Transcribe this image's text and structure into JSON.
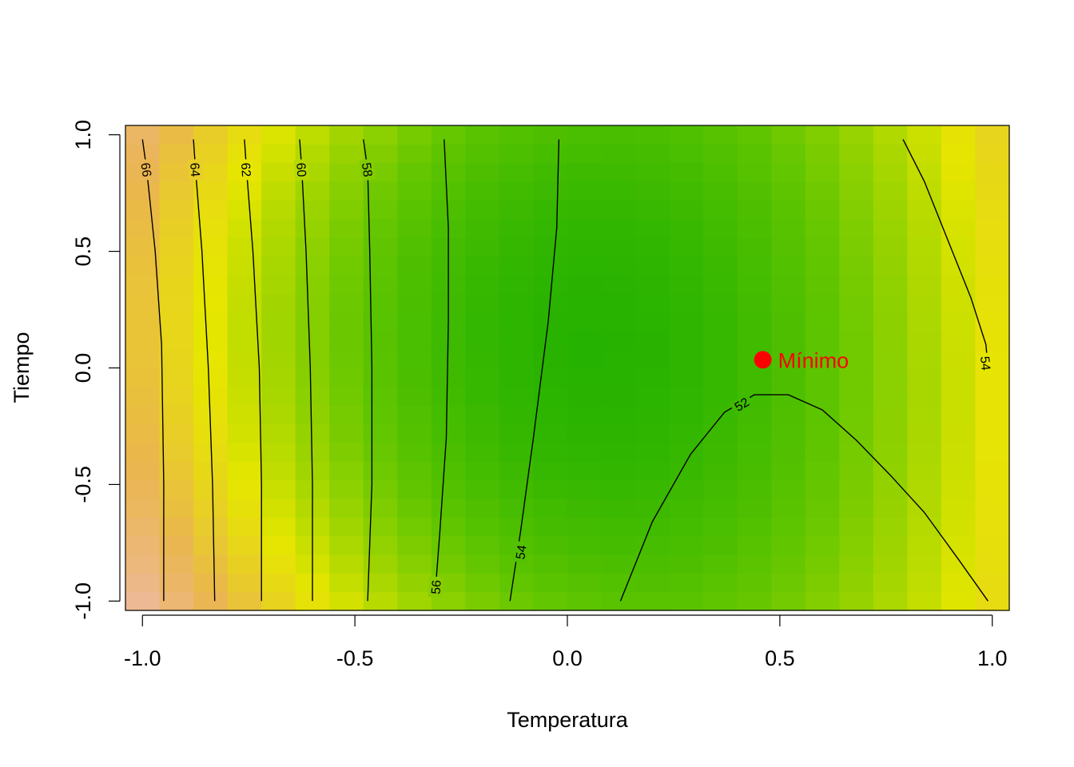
{
  "chart_data": {
    "type": "heatmap",
    "title": "",
    "xlabel": "Temperatura",
    "ylabel": "Tiempo",
    "xlim": [
      -1.04,
      1.04
    ],
    "ylim": [
      -1.04,
      1.04
    ],
    "x_ticks": [
      -1.0,
      -0.5,
      0.0,
      0.5,
      1.0
    ],
    "x_tick_labels": [
      "-1.0",
      "-0.5",
      "0.0",
      "0.5",
      "1.0"
    ],
    "y_ticks": [
      -1.0,
      -0.5,
      0.0,
      0.5,
      1.0
    ],
    "y_tick_labels": [
      "-1.0",
      "-0.5",
      "0.0",
      "0.5",
      "1.0"
    ],
    "color_scale": {
      "low_value": 51,
      "high_value": 67,
      "stops": [
        {
          "value": 51.0,
          "color": "#00A600"
        },
        {
          "value": 54.5,
          "color": "#63C600"
        },
        {
          "value": 58.0,
          "color": "#E6E600"
        },
        {
          "value": 61.0,
          "color": "#EAB64E"
        },
        {
          "value": 64.0,
          "color": "#EEB99F"
        },
        {
          "value": 67.0,
          "color": "#F2F2F2"
        }
      ]
    },
    "contours": [
      {
        "level": 66,
        "label": "66",
        "points": [
          [
            -1.0,
            0.98
          ],
          [
            -0.99,
            0.85
          ],
          [
            -0.97,
            0.5
          ],
          [
            -0.955,
            0.1
          ],
          [
            -0.95,
            -0.5
          ],
          [
            -0.95,
            -1.0
          ]
        ],
        "label_at": [
          -0.99,
          0.85
        ]
      },
      {
        "level": 64,
        "label": "64",
        "points": [
          [
            -0.88,
            0.98
          ],
          [
            -0.875,
            0.85
          ],
          [
            -0.86,
            0.5
          ],
          [
            -0.845,
            0.0
          ],
          [
            -0.835,
            -0.5
          ],
          [
            -0.83,
            -1.0
          ]
        ],
        "label_at": [
          -0.875,
          0.85
        ]
      },
      {
        "level": 62,
        "label": "62",
        "points": [
          [
            -0.76,
            0.98
          ],
          [
            -0.755,
            0.85
          ],
          [
            -0.74,
            0.5
          ],
          [
            -0.725,
            0.0
          ],
          [
            -0.72,
            -0.5
          ],
          [
            -0.72,
            -1.0
          ]
        ],
        "label_at": [
          -0.755,
          0.85
        ]
      },
      {
        "level": 60,
        "label": "60",
        "points": [
          [
            -0.63,
            0.98
          ],
          [
            -0.625,
            0.85
          ],
          [
            -0.615,
            0.5
          ],
          [
            -0.605,
            0.0
          ],
          [
            -0.6,
            -0.5
          ],
          [
            -0.6,
            -1.0
          ]
        ],
        "label_at": [
          -0.625,
          0.85
        ]
      },
      {
        "level": 58,
        "label": "58",
        "points": [
          [
            -0.48,
            0.98
          ],
          [
            -0.47,
            0.85
          ],
          [
            -0.465,
            0.5
          ],
          [
            -0.46,
            0.0
          ],
          [
            -0.46,
            -0.5
          ],
          [
            -0.47,
            -1.0
          ]
        ],
        "label_at": [
          -0.47,
          0.85
        ]
      },
      {
        "level": 56,
        "label": "56",
        "points": [
          [
            -0.29,
            0.98
          ],
          [
            -0.28,
            0.6
          ],
          [
            -0.28,
            0.2
          ],
          [
            -0.285,
            -0.3
          ],
          [
            -0.3,
            -0.7
          ],
          [
            -0.31,
            -0.94
          ]
        ],
        "label_at": [
          -0.31,
          -0.94
        ]
      },
      {
        "level": 54,
        "label": "54",
        "points": [
          [
            -0.02,
            0.98
          ],
          [
            -0.025,
            0.6
          ],
          [
            -0.045,
            0.2
          ],
          [
            -0.08,
            -0.3
          ],
          [
            -0.11,
            -0.7
          ],
          [
            -0.135,
            -1.0
          ]
        ],
        "label_at": [
          -0.11,
          -0.79
        ]
      },
      {
        "level": 52,
        "label": "52",
        "points": [
          [
            0.125,
            -1.0
          ],
          [
            0.2,
            -0.66
          ],
          [
            0.29,
            -0.37
          ],
          [
            0.37,
            -0.19
          ],
          [
            0.44,
            -0.115
          ],
          [
            0.52,
            -0.115
          ],
          [
            0.6,
            -0.18
          ],
          [
            0.68,
            -0.31
          ],
          [
            0.76,
            -0.46
          ],
          [
            0.84,
            -0.62
          ],
          [
            0.92,
            -0.82
          ],
          [
            0.99,
            -1.0
          ]
        ],
        "label_at": [
          0.41,
          -0.155
        ]
      },
      {
        "level": 54,
        "label": "54",
        "points": [
          [
            0.79,
            0.98
          ],
          [
            0.84,
            0.8
          ],
          [
            0.895,
            0.55
          ],
          [
            0.95,
            0.3
          ],
          [
            0.985,
            0.1
          ],
          [
            0.99,
            0.0
          ]
        ],
        "label_at": [
          0.985,
          0.02
        ]
      }
    ],
    "annotations": [
      {
        "label": "Mínimo",
        "x": 0.46,
        "y": 0.035,
        "color": "#FF0000"
      }
    ]
  }
}
